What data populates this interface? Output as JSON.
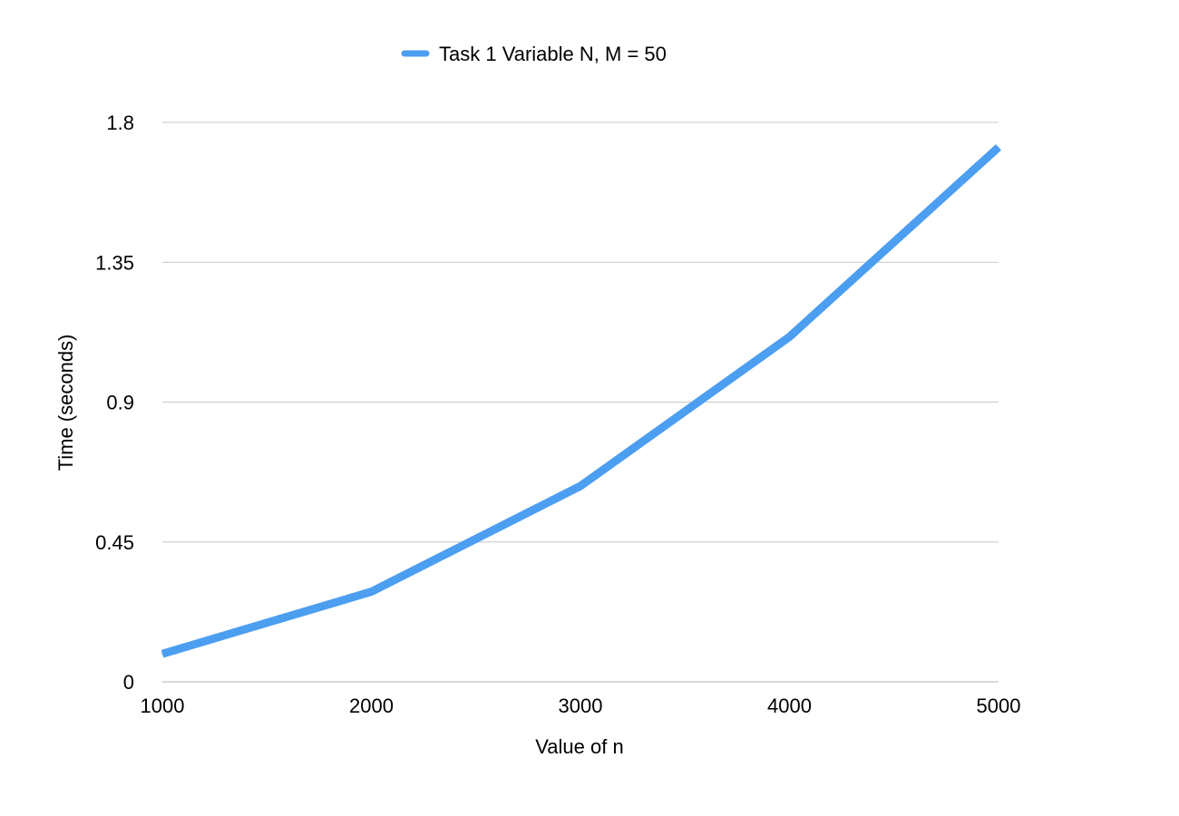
{
  "chart_data": {
    "type": "line",
    "x": [
      1000,
      2000,
      3000,
      4000,
      5000
    ],
    "series": [
      {
        "name": "Task 1 Variable N, M = 50",
        "values": [
          0.09,
          0.29,
          0.63,
          1.11,
          1.72
        ],
        "color": "#4c9ef0"
      }
    ],
    "xlabel": "Value of n",
    "ylabel": "Time (seconds)",
    "xlim": [
      1000,
      5000
    ],
    "ylim": [
      0,
      1.8
    ],
    "x_ticks": [
      "1000",
      "2000",
      "3000",
      "4000",
      "5000"
    ],
    "y_ticks": [
      "0",
      "0.45",
      "0.9",
      "1.35",
      "1.8"
    ],
    "grid": "horizontal",
    "legend_position": "top-center",
    "colors": {
      "gridline": "#c8c8c8",
      "axis_line": "#b4b4b4"
    }
  }
}
